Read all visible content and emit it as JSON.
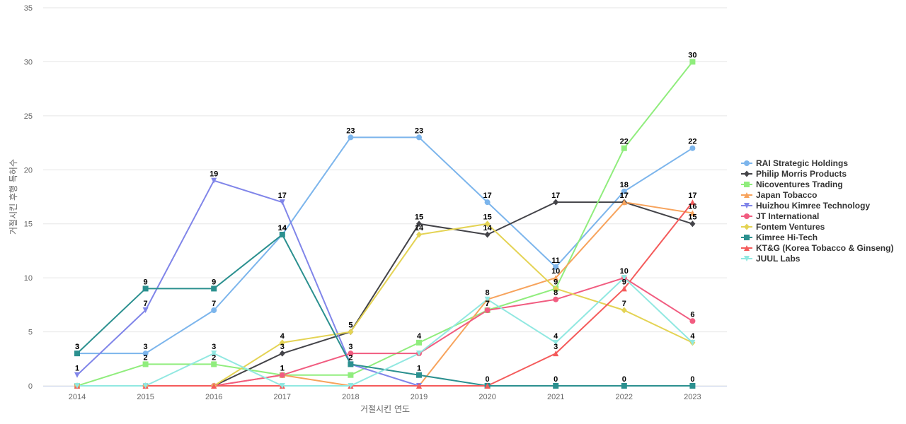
{
  "chart_data": {
    "type": "line",
    "title": "",
    "xlabel": "거절시킨 연도",
    "ylabel": "거절시킨 후행 특허수",
    "ylim": [
      0,
      35
    ],
    "yticks": [
      0,
      5,
      10,
      15,
      20,
      25,
      30,
      35
    ],
    "categories": [
      "2014",
      "2015",
      "2016",
      "2017",
      "2018",
      "2019",
      "2020",
      "2021",
      "2022",
      "2023"
    ],
    "grid": true,
    "legend_position": "right",
    "series": [
      {
        "name": "RAI Strategic Holdings",
        "color": "#7cb5ec",
        "marker": "circle",
        "values": [
          3,
          3,
          7,
          14,
          23,
          23,
          17,
          11,
          18,
          22
        ]
      },
      {
        "name": "Philip Morris Products",
        "color": "#434348",
        "marker": "diamond",
        "values": [
          0,
          0,
          0,
          3,
          5,
          15,
          14,
          17,
          17,
          15
        ]
      },
      {
        "name": "Nicoventures Trading",
        "color": "#90ed7d",
        "marker": "square",
        "values": [
          0,
          2,
          2,
          1,
          1,
          4,
          7,
          9,
          22,
          30
        ]
      },
      {
        "name": "Japan Tobacco",
        "color": "#f7a35c",
        "marker": "triangle",
        "values": [
          0,
          0,
          0,
          1,
          0,
          0,
          8,
          10,
          17,
          16
        ]
      },
      {
        "name": "Huizhou Kimree Technology",
        "color": "#8085e9",
        "marker": "triangle-down",
        "values": [
          1,
          7,
          19,
          17,
          2,
          0,
          0,
          0,
          0,
          0
        ]
      },
      {
        "name": "JT International",
        "color": "#f15c80",
        "marker": "circle",
        "values": [
          0,
          0,
          0,
          1,
          3,
          3,
          7,
          8,
          10,
          6
        ]
      },
      {
        "name": "Fontem Ventures",
        "color": "#e4d354",
        "marker": "diamond",
        "values": [
          0,
          0,
          0,
          4,
          5,
          14,
          15,
          9,
          7,
          4
        ]
      },
      {
        "name": "Kimree Hi-Tech",
        "color": "#2b908f",
        "marker": "square",
        "values": [
          3,
          9,
          9,
          14,
          2,
          1,
          0,
          0,
          0,
          0
        ]
      },
      {
        "name": "KT&G (Korea Tobacco & Ginseng)",
        "color": "#f45b5b",
        "marker": "triangle",
        "values": [
          0,
          0,
          0,
          0,
          0,
          0,
          0,
          3,
          9,
          17
        ]
      },
      {
        "name": "JUUL Labs",
        "color": "#91e8e1",
        "marker": "triangle-down",
        "values": [
          0,
          0,
          3,
          0,
          0,
          3,
          8,
          4,
          10,
          4
        ]
      }
    ],
    "data_labels": [
      {
        "series": 0,
        "indices": [
          0,
          1,
          2,
          3,
          4,
          5,
          6,
          7,
          8,
          9
        ]
      },
      {
        "series": 1,
        "indices": [
          3,
          4,
          5,
          6,
          7,
          8,
          9
        ]
      },
      {
        "series": 2,
        "indices": [
          1,
          2,
          3,
          5,
          6,
          8,
          9
        ]
      },
      {
        "series": 3,
        "indices": [
          6,
          7,
          8,
          9
        ]
      },
      {
        "series": 4,
        "indices": [
          0,
          1,
          2,
          3
        ]
      },
      {
        "series": 5,
        "indices": [
          3,
          4,
          6,
          7,
          8,
          9
        ]
      },
      {
        "series": 6,
        "indices": [
          3,
          4,
          5,
          6,
          7,
          8,
          9
        ]
      },
      {
        "series": 7,
        "indices": [
          0,
          1,
          2,
          3,
          4,
          5,
          6,
          7,
          8,
          9
        ]
      },
      {
        "series": 8,
        "indices": [
          7,
          8,
          9
        ]
      },
      {
        "series": 9,
        "indices": [
          2,
          7
        ]
      }
    ]
  }
}
